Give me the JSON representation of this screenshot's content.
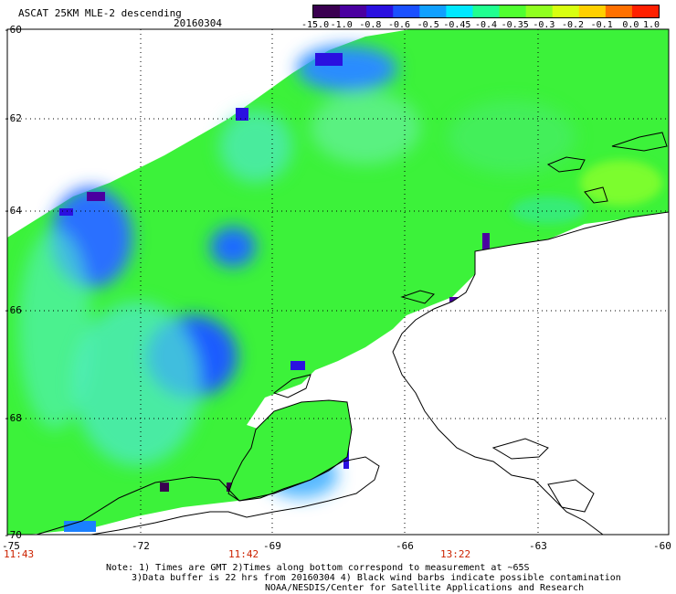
{
  "title": "ASCAT 25KM MLE-2 descending",
  "date": "20160304",
  "colorbar": {
    "labels": [
      "-15.0",
      "-1.0",
      "-0.8",
      "-0.6",
      "-0.5",
      "-0.45",
      "-0.4",
      "-0.35",
      "-0.3",
      "-0.2",
      "-0.1",
      "0.0",
      "1.0"
    ],
    "colors": [
      "#3a0050",
      "#4a00a0",
      "#2a10e0",
      "#1a50ff",
      "#10a0ff",
      "#00e8ff",
      "#20ff90",
      "#50ff30",
      "#90ff20",
      "#d8ff10",
      "#ffd000",
      "#ff7000",
      "#ff2000"
    ]
  },
  "lat_labels": [
    "-60",
    "-62",
    "-64",
    "-66",
    "-68",
    "-70"
  ],
  "lon_labels": [
    "-75",
    "-72",
    "-69",
    "-66",
    "-63",
    "-60"
  ],
  "time_labels": [
    "11:43",
    "11:42",
    "13:22"
  ],
  "notes": [
    "Note: 1) Times are GMT 2)Times along bottom correspond to measurement at ~65S",
    "3)Data buffer is 22 hrs from 20160304 4) Black wind barbs indicate possible contamination",
    "NOAA/NESDIS/Center for Satellite Applications and Research"
  ],
  "legend_colors": {
    "land": "#ffffff",
    "no_data": "#ffffff",
    "grid": "#000000"
  }
}
